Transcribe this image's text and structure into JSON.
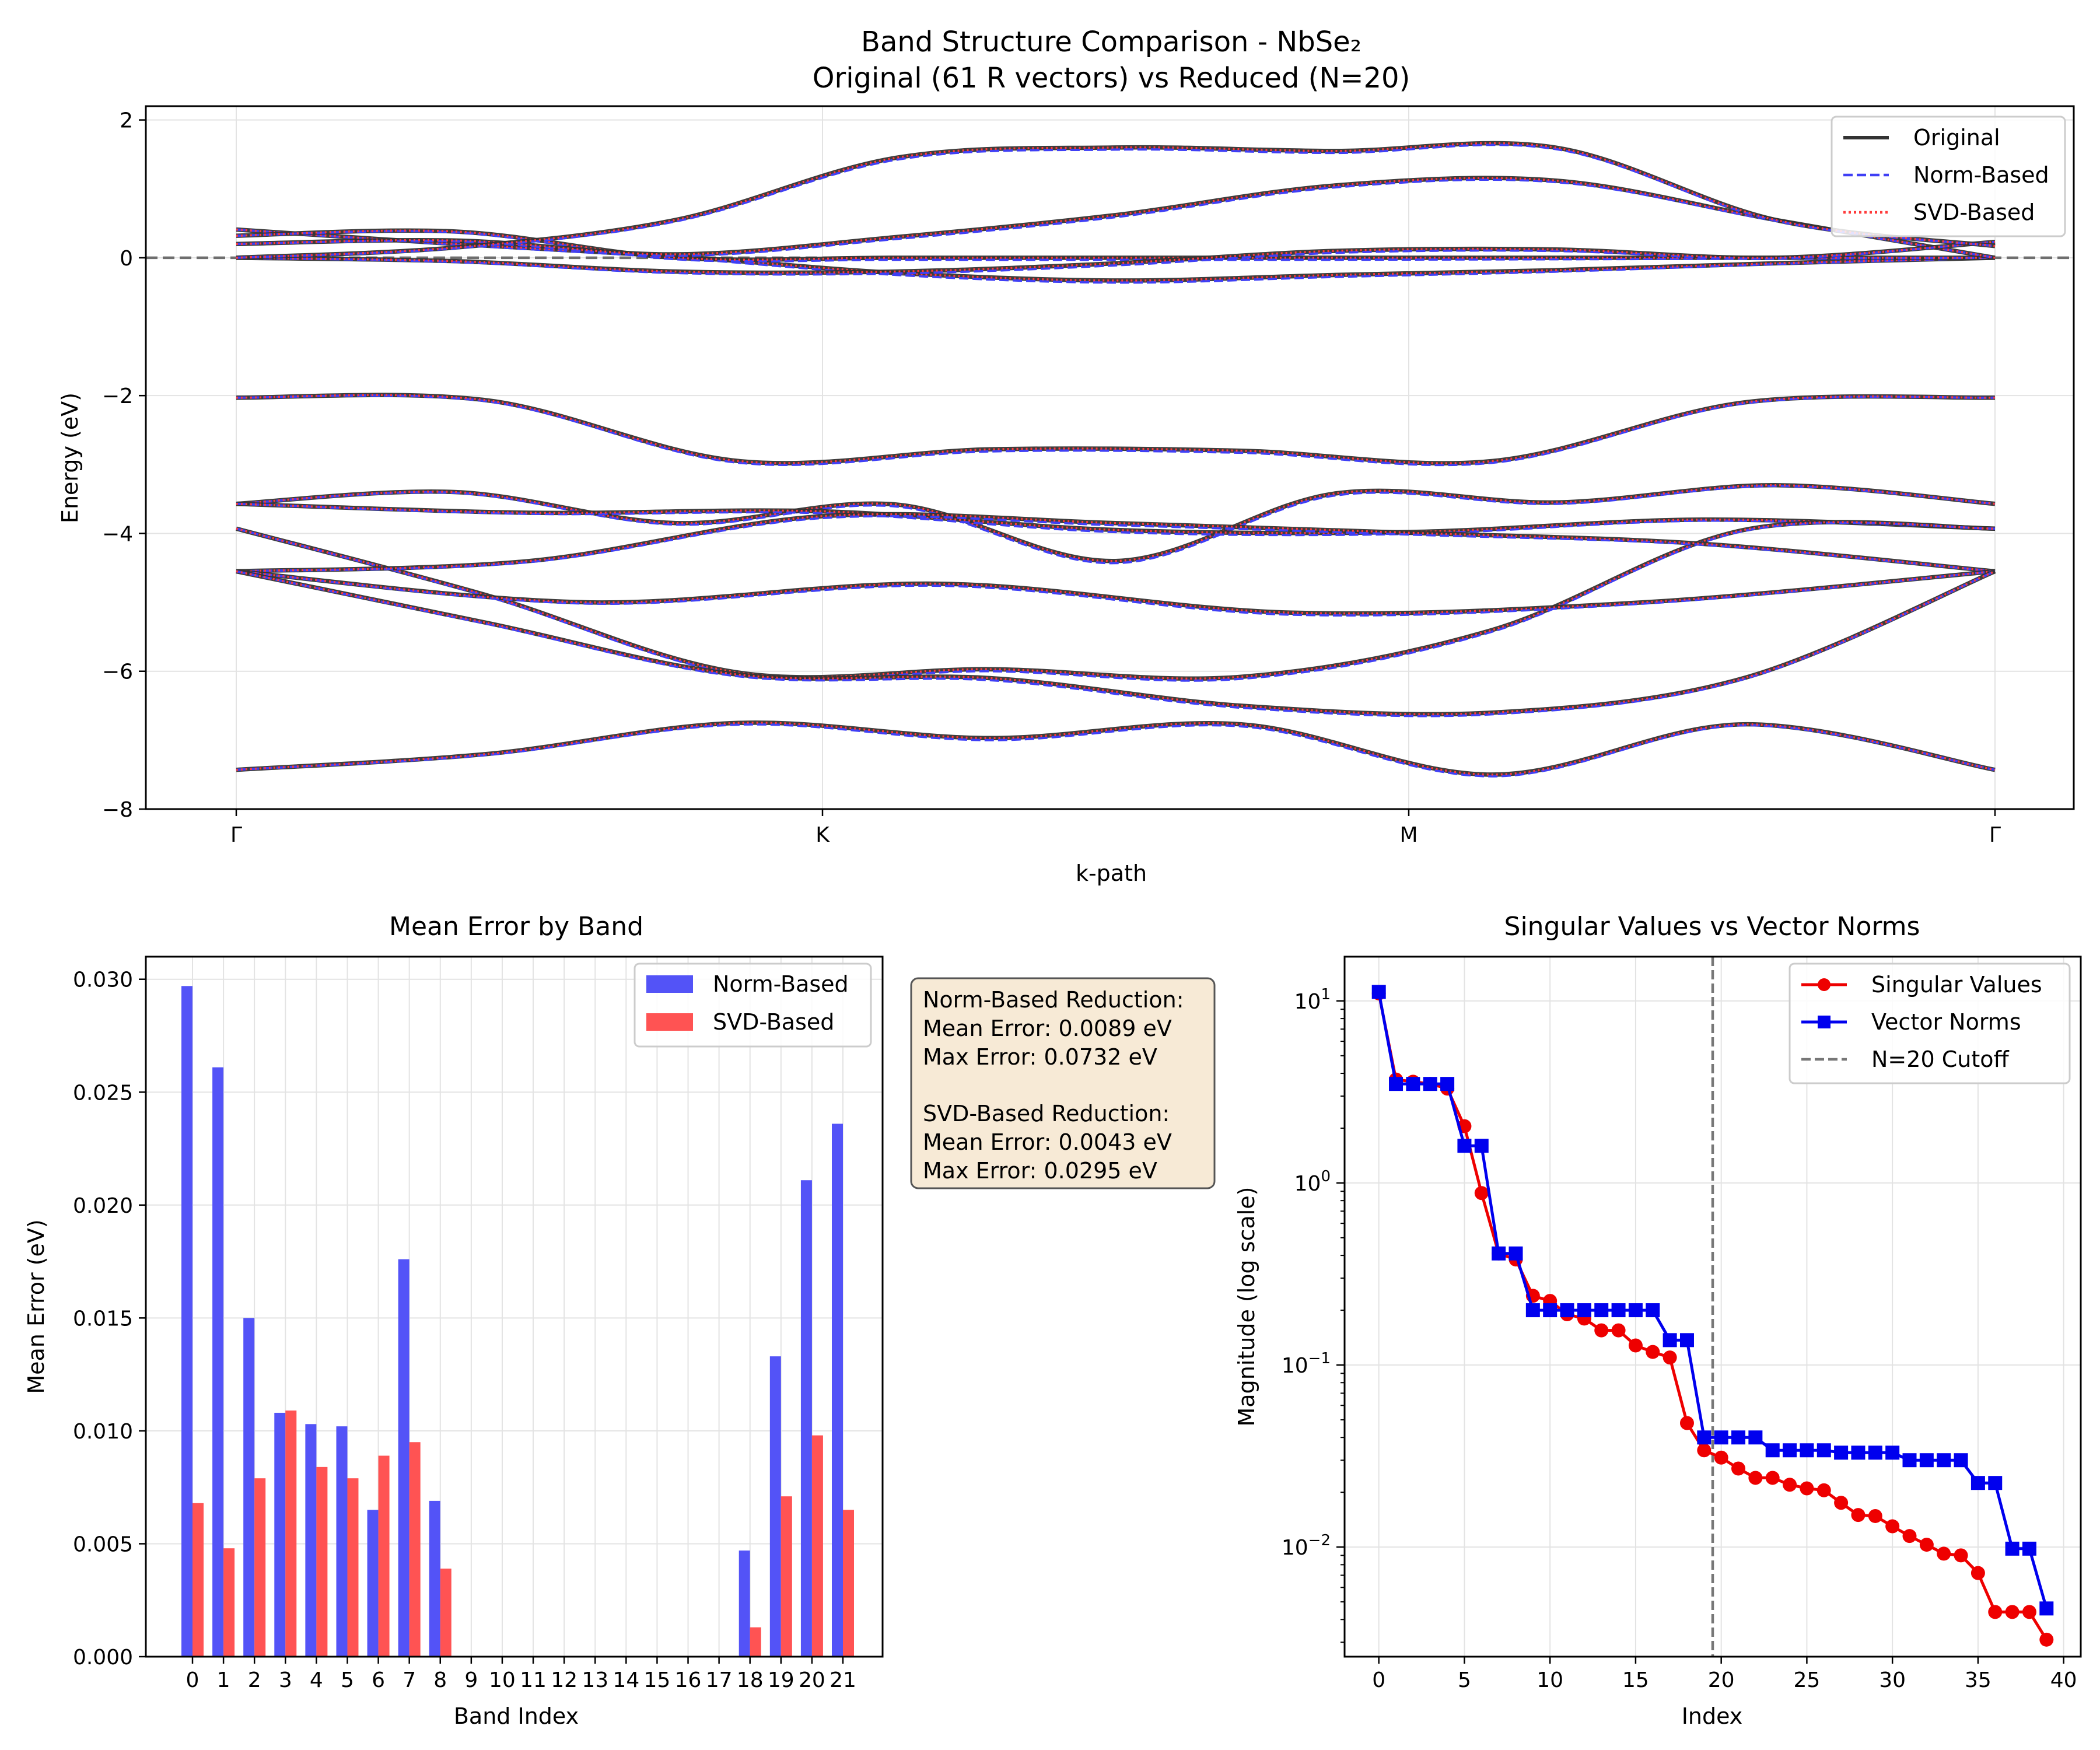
{
  "chart_data": [
    {
      "type": "line",
      "title": "Band Structure Comparison - NbSe₂",
      "subtitle": "Original (61 R vectors) vs Reduced (N=20)",
      "xlabel": "k-path",
      "ylabel": "Energy (eV)",
      "ylim": [
        -8,
        2.2
      ],
      "yticks": [
        -8,
        -6,
        -4,
        -2,
        0,
        2
      ],
      "yticklabels": [
        "−8",
        "−6",
        "−4",
        "−2",
        "0",
        "2"
      ],
      "xticklabels": [
        "Γ",
        "K",
        "M",
        "Γ"
      ],
      "grid": true,
      "legend": "top-right",
      "fermi_level": 0,
      "series": [
        {
          "name": "Original",
          "color": "#333333",
          "style": "solid"
        },
        {
          "name": "Norm-Based",
          "color": "#3f3ff5",
          "style": "dashed"
        },
        {
          "name": "SVD-Based",
          "color": "#ff3b3b",
          "style": "dotted"
        }
      ],
      "bands": [
        [
          0.41,
          0.2,
          0.02,
          -0.22,
          -0.33,
          -0.25,
          -0.18,
          -0.08,
          0.0
        ],
        [
          0.32,
          0.38,
          0.0,
          0.0,
          0.0,
          0.0,
          0.0,
          0.0,
          0.0
        ],
        [
          0.2,
          0.25,
          0.05,
          0.3,
          0.62,
          1.05,
          1.12,
          0.55,
          0.0
        ],
        [
          0.0,
          -0.05,
          -0.2,
          -0.2,
          -0.08,
          0.1,
          0.12,
          0.0,
          0.23
        ],
        [
          0.0,
          0.15,
          0.55,
          1.45,
          1.6,
          1.55,
          1.6,
          0.55,
          0.17
        ],
        [
          -2.03,
          -2.07,
          -2.95,
          -2.78,
          -2.8,
          -2.95,
          -2.1,
          -2.03
        ],
        [
          -3.57,
          -3.4,
          -3.85,
          -3.58,
          -4.4,
          -3.42,
          -3.55,
          -3.3,
          -3.57
        ],
        [
          -3.57,
          -3.7,
          -3.68,
          -3.95,
          -3.98,
          -3.8,
          -3.93
        ],
        [
          -3.93,
          -4.9,
          -6.02,
          -5.97,
          -6.08,
          -5.4,
          -3.95,
          -3.93
        ],
        [
          -4.55,
          -4.4,
          -3.75,
          -3.85,
          -3.99,
          -4.15,
          -4.55
        ],
        [
          -4.55,
          -5.0,
          -4.73,
          -5.15,
          -5.0,
          -4.55
        ],
        [
          -4.55,
          -5.3,
          -6.05,
          -6.1,
          -6.5,
          -6.6,
          -6.1,
          -4.55
        ],
        [
          -7.43,
          -7.2,
          -6.75,
          -6.97,
          -6.77,
          -7.5,
          -6.77,
          -7.43
        ]
      ]
    },
    {
      "type": "bar",
      "title": "Mean Error by Band",
      "xlabel": "Band Index",
      "ylabel": "Mean Error (eV)",
      "ylim": [
        0,
        0.031
      ],
      "yticks": [
        0.0,
        0.005,
        0.01,
        0.015,
        0.02,
        0.025,
        0.03
      ],
      "yticklabels": [
        "0.000",
        "0.005",
        "0.010",
        "0.015",
        "0.020",
        "0.025",
        "0.030"
      ],
      "categories": [
        "0",
        "1",
        "2",
        "3",
        "4",
        "5",
        "6",
        "7",
        "8",
        "9",
        "10",
        "11",
        "12",
        "13",
        "14",
        "15",
        "16",
        "17",
        "18",
        "19",
        "20",
        "21"
      ],
      "grid": true,
      "legend": "top-right",
      "series": [
        {
          "name": "Norm-Based",
          "color": "#5353f7",
          "values": [
            0.0297,
            0.0261,
            0.015,
            0.0108,
            0.0103,
            0.0102,
            0.0065,
            0.0176,
            0.0069,
            0,
            0,
            0,
            0,
            0,
            0,
            0,
            0,
            0,
            0.0047,
            0.0133,
            0.0211,
            0.0236
          ]
        },
        {
          "name": "SVD-Based",
          "color": "#ff5353",
          "values": [
            0.0068,
            0.0048,
            0.0079,
            0.0109,
            0.0084,
            0.0079,
            0.0089,
            0.0095,
            0.0039,
            0,
            0,
            0,
            0,
            0,
            0,
            0,
            0,
            0,
            0.0013,
            0.0071,
            0.0098,
            0.0065
          ]
        }
      ]
    },
    {
      "type": "line",
      "title": "Singular Values vs Vector Norms",
      "xlabel": "Index",
      "ylabel": "Magnitude (log scale)",
      "yscale": "log",
      "xlim": [
        -2,
        41
      ],
      "ylim": [
        0.0025,
        17.5
      ],
      "xticks": [
        0,
        5,
        10,
        15,
        20,
        25,
        30,
        35,
        40
      ],
      "grid": true,
      "legend": "top-right",
      "cutoff": {
        "name": "N=20 Cutoff",
        "x": 19.5,
        "color": "#777777"
      },
      "series": [
        {
          "name": "Singular Values",
          "color": "#ee0000",
          "marker": "circle",
          "x": [
            0,
            1,
            2,
            3,
            4,
            5,
            6,
            7,
            8,
            9,
            10,
            11,
            12,
            13,
            14,
            15,
            16,
            17,
            18,
            19,
            20,
            21,
            22,
            23,
            24,
            25,
            26,
            27,
            28,
            29,
            30,
            31,
            32,
            33,
            34,
            35,
            36,
            37,
            38,
            39
          ],
          "values": [
            11.0,
            3.7,
            3.6,
            3.5,
            3.3,
            2.05,
            0.88,
            0.41,
            0.38,
            0.24,
            0.225,
            0.19,
            0.18,
            0.155,
            0.155,
            0.128,
            0.118,
            0.11,
            0.048,
            0.034,
            0.031,
            0.027,
            0.024,
            0.024,
            0.022,
            0.021,
            0.0205,
            0.0175,
            0.015,
            0.0148,
            0.013,
            0.0115,
            0.0103,
            0.0092,
            0.009,
            0.0072,
            0.0044,
            0.0044,
            0.0044,
            0.0031
          ]
        },
        {
          "name": "Vector Norms",
          "color": "#0000ee",
          "marker": "square",
          "x": [
            0,
            1,
            2,
            3,
            4,
            5,
            6,
            7,
            8,
            9,
            10,
            11,
            12,
            13,
            14,
            15,
            16,
            17,
            18,
            19,
            20,
            21,
            22,
            23,
            24,
            25,
            26,
            27,
            28,
            29,
            30,
            31,
            32,
            33,
            34,
            35,
            36,
            37,
            38,
            39
          ],
          "values": [
            11.2,
            3.5,
            3.5,
            3.5,
            3.5,
            1.6,
            1.6,
            0.41,
            0.41,
            0.2,
            0.2,
            0.2,
            0.2,
            0.2,
            0.2,
            0.2,
            0.2,
            0.137,
            0.137,
            0.04,
            0.04,
            0.04,
            0.04,
            0.034,
            0.034,
            0.034,
            0.034,
            0.033,
            0.033,
            0.033,
            0.033,
            0.03,
            0.03,
            0.03,
            0.03,
            0.0225,
            0.0225,
            0.0098,
            0.0098,
            0.0046
          ]
        }
      ]
    }
  ],
  "info_box": {
    "lines": [
      "Norm-Based Reduction:",
      "Mean Error: 0.0089 eV",
      "Max Error: 0.0732 eV",
      "",
      "SVD-Based Reduction:",
      "Mean Error: 0.0043 eV",
      "Max Error: 0.0295 eV"
    ],
    "background": "#f7ead6",
    "border": "#555555"
  }
}
